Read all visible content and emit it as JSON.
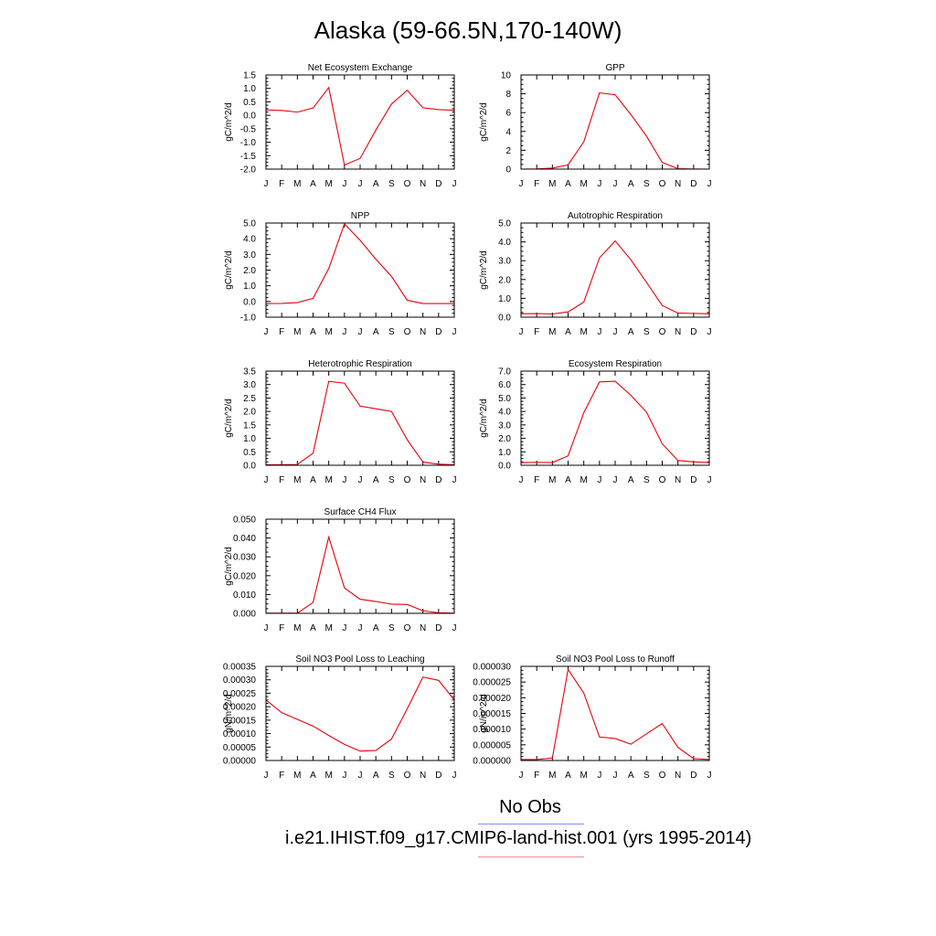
{
  "title": "Alaska (59-66.5N,170-140W)",
  "legend": {
    "obs_label": "No Obs",
    "obs_color": "#8c8cf0",
    "model_label": "i.e21.IHIST.f09_g17.CMIP6-land-hist.001 (yrs 1995-2014)",
    "model_color": "#f08c8c"
  },
  "chart_data": [
    {
      "type": "line",
      "title": "Net Ecosystem Exchange",
      "ylabel": "gC/m^2/d",
      "x": [
        "J",
        "F",
        "M",
        "A",
        "M",
        "J",
        "J",
        "A",
        "S",
        "O",
        "N",
        "D",
        "J"
      ],
      "ylim": [
        -2.0,
        1.5
      ],
      "yticks": [
        "-2.0",
        "-1.5",
        "-1.0",
        "-0.5",
        "0.0",
        "0.5",
        "1.0",
        "1.5"
      ],
      "series": [
        {
          "color": "#e8000b",
          "values": [
            0.2,
            0.18,
            0.12,
            0.27,
            1.03,
            -1.85,
            -1.6,
            -0.55,
            0.42,
            0.93,
            0.28,
            0.21,
            0.19
          ]
        }
      ]
    },
    {
      "type": "line",
      "title": "GPP",
      "ylabel": "gC/m^2/d",
      "x": [
        "J",
        "F",
        "M",
        "A",
        "M",
        "J",
        "J",
        "A",
        "S",
        "O",
        "N",
        "D",
        "J"
      ],
      "ylim": [
        0,
        10
      ],
      "yticks": [
        "0",
        "2",
        "4",
        "6",
        "8",
        "10"
      ],
      "series": [
        {
          "color": "#e8000b",
          "values": [
            0.0,
            0.02,
            0.1,
            0.45,
            2.9,
            8.1,
            7.9,
            5.8,
            3.5,
            0.7,
            0.05,
            0.01,
            0.0
          ]
        }
      ]
    },
    {
      "type": "line",
      "title": "NPP",
      "ylabel": "gC/m^2/d",
      "x": [
        "J",
        "F",
        "M",
        "A",
        "M",
        "J",
        "J",
        "A",
        "S",
        "O",
        "N",
        "D",
        "J"
      ],
      "ylim": [
        -1.0,
        5.0
      ],
      "yticks": [
        "-1.0",
        "0.0",
        "1.0",
        "2.0",
        "3.0",
        "4.0",
        "5.0"
      ],
      "series": [
        {
          "color": "#e8000b",
          "values": [
            -0.13,
            -0.12,
            -0.07,
            0.2,
            2.1,
            4.95,
            3.9,
            2.7,
            1.6,
            0.08,
            -0.13,
            -0.13,
            -0.13
          ]
        }
      ]
    },
    {
      "type": "line",
      "title": "Autotrophic Respiration",
      "ylabel": "gC/m^2/d",
      "x": [
        "J",
        "F",
        "M",
        "A",
        "M",
        "J",
        "J",
        "A",
        "S",
        "O",
        "N",
        "D",
        "J"
      ],
      "ylim": [
        0.0,
        5.0
      ],
      "yticks": [
        "0.0",
        "1.0",
        "2.0",
        "3.0",
        "4.0",
        "5.0"
      ],
      "series": [
        {
          "color": "#e8000b",
          "values": [
            0.18,
            0.19,
            0.17,
            0.28,
            0.8,
            3.15,
            4.05,
            3.05,
            1.85,
            0.62,
            0.22,
            0.2,
            0.18
          ]
        }
      ]
    },
    {
      "type": "line",
      "title": "Heterotrophic Respiration",
      "ylabel": "gC/m^2/d",
      "x": [
        "J",
        "F",
        "M",
        "A",
        "M",
        "J",
        "J",
        "A",
        "S",
        "O",
        "N",
        "D",
        "J"
      ],
      "ylim": [
        0.0,
        3.5
      ],
      "yticks": [
        "0.0",
        "0.5",
        "1.0",
        "1.5",
        "2.0",
        "2.5",
        "3.0",
        "3.5"
      ],
      "series": [
        {
          "color": "#e8000b",
          "values": [
            0.02,
            0.02,
            0.03,
            0.45,
            3.12,
            3.05,
            2.2,
            2.1,
            2.0,
            0.95,
            0.12,
            0.04,
            0.02
          ]
        }
      ]
    },
    {
      "type": "line",
      "title": "Ecosystem Respiration",
      "ylabel": "gC/m^2/d",
      "x": [
        "J",
        "F",
        "M",
        "A",
        "M",
        "J",
        "J",
        "A",
        "S",
        "O",
        "N",
        "D",
        "J"
      ],
      "ylim": [
        0.0,
        7.0
      ],
      "yticks": [
        "0.0",
        "1.0",
        "2.0",
        "3.0",
        "4.0",
        "5.0",
        "6.0",
        "7.0"
      ],
      "series": [
        {
          "color": "#e8000b",
          "values": [
            0.2,
            0.22,
            0.2,
            0.7,
            3.9,
            6.2,
            6.25,
            5.2,
            3.95,
            1.6,
            0.35,
            0.25,
            0.2
          ]
        }
      ]
    },
    {
      "type": "line",
      "title": "Surface CH4 Flux",
      "ylabel": "gC/m^2/d",
      "x": [
        "J",
        "F",
        "M",
        "A",
        "M",
        "J",
        "J",
        "A",
        "S",
        "O",
        "N",
        "D",
        "J"
      ],
      "ylim": [
        0.0,
        0.05
      ],
      "yticks": [
        "0.000",
        "0.010",
        "0.020",
        "0.030",
        "0.040",
        "0.050"
      ],
      "series": [
        {
          "color": "#e8000b",
          "values": [
            0.0001,
            0.0001,
            0.0001,
            0.0058,
            0.0405,
            0.0135,
            0.0075,
            0.0063,
            0.0049,
            0.0047,
            0.0014,
            0.0003,
            0.0001
          ]
        }
      ]
    },
    {
      "type": "line",
      "title": "Soil NO3 Pool Loss to Leaching",
      "ylabel": "gN/m^2/d",
      "x": [
        "J",
        "F",
        "M",
        "A",
        "M",
        "J",
        "J",
        "A",
        "S",
        "O",
        "N",
        "D",
        "J"
      ],
      "ylim": [
        0.0,
        0.00035
      ],
      "yticks": [
        "0.00000",
        "0.00005",
        "0.00010",
        "0.00015",
        "0.00020",
        "0.00025",
        "0.00030",
        "0.00035"
      ],
      "series": [
        {
          "color": "#e8000b",
          "values": [
            0.000225,
            0.000178,
            0.000153,
            0.000128,
            9.3e-05,
            6e-05,
            3.5e-05,
            3.7e-05,
            8e-05,
            0.000192,
            0.00031,
            0.000298,
            0.000225
          ]
        }
      ]
    },
    {
      "type": "line",
      "title": "Soil NO3 Pool Loss to Runoff",
      "ylabel": "gN/m^2/d",
      "x": [
        "J",
        "F",
        "M",
        "A",
        "M",
        "J",
        "J",
        "A",
        "S",
        "O",
        "N",
        "D",
        "J"
      ],
      "ylim": [
        0.0,
        3e-05
      ],
      "yticks": [
        "0.000000",
        "0.000005",
        "0.000010",
        "0.000015",
        "0.000020",
        "0.000025",
        "0.000030"
      ],
      "series": [
        {
          "color": "#e8000b",
          "values": [
            3e-07,
            3e-07,
            8e-07,
            2.9e-05,
            2.15e-05,
            7.5e-06,
            7e-06,
            5.2e-06,
            8.5e-06,
            1.18e-05,
            4.2e-06,
            6e-07,
            3e-07
          ]
        }
      ]
    }
  ]
}
